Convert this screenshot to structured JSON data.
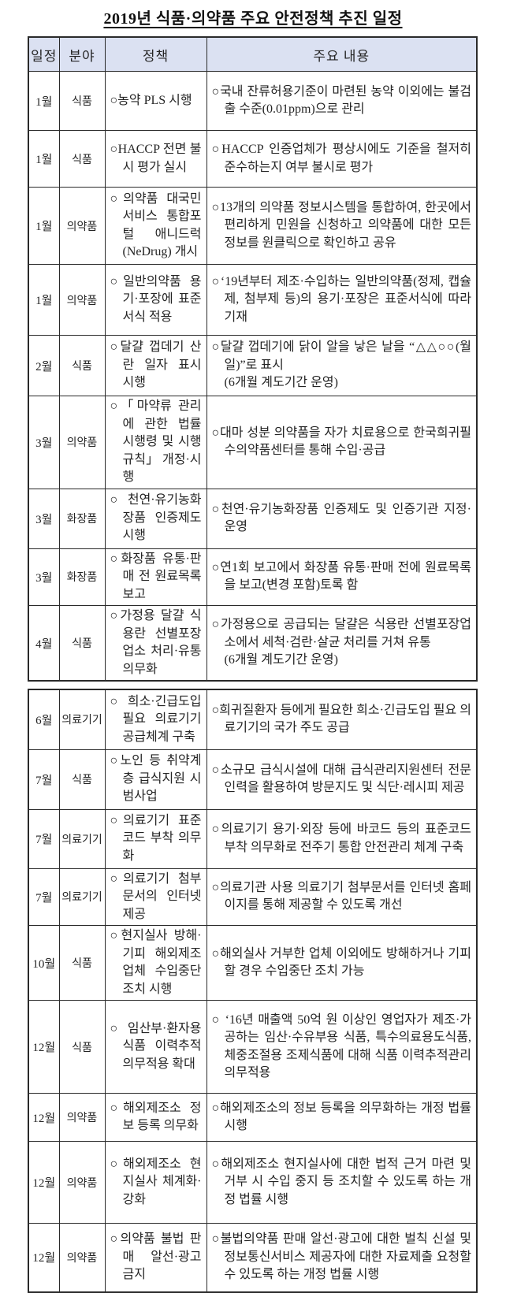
{
  "page": {
    "title": "2019년 식품·의약품 주요 안전정책 추진 일정"
  },
  "colors": {
    "header_bg": "#dbe1f2",
    "border": "#2a2a2a",
    "text": "#242424"
  },
  "table": {
    "headers": [
      "일정",
      "분야",
      "정책",
      "주요 내용"
    ],
    "sections": [
      {
        "rows": [
          {
            "month": "1월",
            "field": "식품",
            "policy": "○농약 PLS 시행",
            "content": "○국내 잔류허용기준이 마련된 농약 이외에는 불검출 수준(0.01ppm)으로 관리"
          },
          {
            "month": "1월",
            "field": "식품",
            "policy": "○HACCP 전면 불시 평가 실시",
            "content": "○HACCP 인증업체가 평상시에도 기준을 철저히 준수하는지 여부 불시로 평가"
          },
          {
            "month": "1월",
            "field": "의약품",
            "policy": "○의약품 대국민서비스 통합포털 애니드럭(NeDrug) 개시",
            "content": "○13개의 의약품 정보시스템을 통합하여, 한곳에서 편리하게 민원을 신청하고 의약품에 대한 모든 정보를 원클릭으로 확인하고 공유"
          },
          {
            "month": "1월",
            "field": "의약품",
            "policy": "○일반의약품 용기·포장에 표준서식 적용",
            "content": "○‘19년부터 제조·수입하는 일반의약품(정제, 캡슐제, 첨부제 등)의 용기·포장은 표준서식에 따라 기재"
          },
          {
            "month": "2월",
            "field": "식품",
            "policy": "○달걀 껍데기 산란 일자 표시 시행",
            "content": "○달걀 껍데기에 닭이 알을 낳은 날을 “△△○○(월일)”로 표시\n(6개월 계도기간 운영)"
          },
          {
            "month": "3월",
            "field": "의약품",
            "policy": "○「마약류 관리에 관한 법률 시행령 및 시행규칙」 개정·시행",
            "content": "○대마 성분 의약품을 자가 치료용으로 한국희귀필수의약품센터를 통해 수입·공급"
          },
          {
            "month": "3월",
            "field": "화장품",
            "policy": "○천연·유기농화장품 인증제도 시행",
            "content": "○천연·유기농화장품 인증제도 및 인증기관 지정·운영"
          },
          {
            "month": "3월",
            "field": "화장품",
            "policy": "○화장품 유통·판매 전 원료목록 보고",
            "content": "○연1회 보고에서 화장품 유통·판매 전에 원료목록을 보고(변경 포함)토록 함"
          },
          {
            "month": "4월",
            "field": "식품",
            "policy": "○가정용 달걀 식용란 선별포장업소 처리·유통 의무화",
            "content": "○가정용으로 공급되는 달걀은 식용란 선별포장업소에서 세척·검란·살균 처리를 거쳐 유통\n(6개월 계도기간 운영)"
          }
        ]
      },
      {
        "rows": [
          {
            "month": "6월",
            "field": "의료기기",
            "policy": "○희소·긴급도입 필요 의료기기 공급체계 구축",
            "content": "○희귀질환자 등에게 필요한 희소·긴급도입 필요 의료기기의 국가 주도 공급"
          },
          {
            "month": "7월",
            "field": "식품",
            "policy": "○노인 등 취약계층 급식지원 시범사업",
            "content": "○소규모 급식시설에 대해 급식관리지원센터 전문 인력을 활용하여 방문지도 및 식단·레시피 제공"
          },
          {
            "month": "7월",
            "field": "의료기기",
            "policy": "○의료기기 표준코드 부착 의무화",
            "content": "○의료기기 용기·외장 등에 바코드 등의 표준코드 부착 의무화로 전주기 통합 안전관리 체계 구축"
          },
          {
            "month": "7월",
            "field": "의료기기",
            "policy": "○의료기기 첨부문서의 인터넷 제공",
            "content": "○의료기관 사용 의료기기 첨부문서를 인터넷 홈페이지를 통해 제공할 수 있도록 개선"
          },
          {
            "month": "10월",
            "field": "식품",
            "policy": "○현지실사 방해·기피 해외제조업체 수입중단 조치 시행",
            "content": "○해외실사 거부한 업체 이외에도 방해하거나 기피할 경우 수입중단 조치 가능"
          },
          {
            "month": "12월",
            "field": "식품",
            "policy": "○임산부·환자용 식품 이력추적 의무적용 확대",
            "content": "○ ‘16년 매출액 50억 원 이상인 영업자가 제조·가공하는 임산·수유부용 식품, 특수의료용도식품, 체중조절용 조제식품에 대해 식품 이력추적관리 의무적용"
          },
          {
            "month": "12월",
            "field": "의약품",
            "policy": "○해외제조소 정보 등록 의무화",
            "content": "○해외제조소의 정보 등록을 의무화하는 개정 법률 시행"
          },
          {
            "month": "12월",
            "field": "의약품",
            "policy": "○해외제조소 현지실사 체계화·강화",
            "content": "○해외제조소 현지실사에 대한 법적 근거 마련 및 거부 시 수입 중지 등 조치할 수 있도록 하는 개정 법률 시행"
          },
          {
            "month": "12월",
            "field": "의약품",
            "policy": "○의약품 불법 판매 알선·광고 금지",
            "content": "○불법의약품 판매 알선·광고에 대한 벌칙 신설 및 정보통신서비스 제공자에 대한 자료제출 요청할 수 있도록 하는 개정 법률 시행"
          }
        ]
      }
    ]
  }
}
